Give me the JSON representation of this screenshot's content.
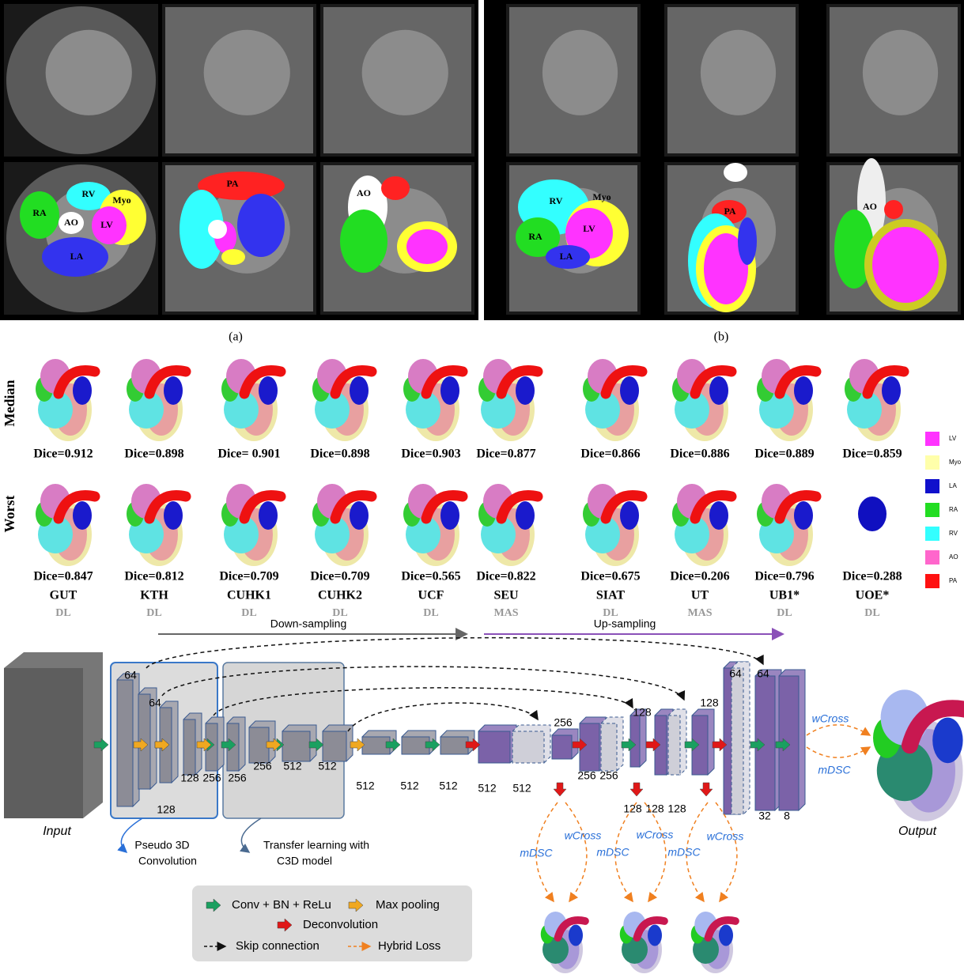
{
  "panel_a": {
    "labels": [
      "RA",
      "RV",
      "AO",
      "Myo",
      "LV",
      "LA",
      "PA",
      "AO"
    ],
    "caption": "(a)"
  },
  "panel_b": {
    "labels": [
      "RV",
      "Myo",
      "RA",
      "LV",
      "LA",
      "PA",
      "AO"
    ],
    "caption": "(b)"
  },
  "results": {
    "row_labels": [
      "Median",
      "Worst"
    ],
    "columns": [
      {
        "team": "GUT",
        "method": "DL",
        "median_dice": "Dice=0.912",
        "worst_dice": "Dice=0.847"
      },
      {
        "team": "KTH",
        "method": "DL",
        "median_dice": "Dice=0.898",
        "worst_dice": "Dice=0.812"
      },
      {
        "team": "CUHK1",
        "method": "DL",
        "median_dice": "Dice= 0.901",
        "worst_dice": "Dice=0.709"
      },
      {
        "team": "CUHK2",
        "method": "DL",
        "median_dice": "Dice=0.898",
        "worst_dice": "Dice=0.709"
      },
      {
        "team": "UCF",
        "method": "DL",
        "median_dice": "Dice=0.903",
        "worst_dice": "Dice=0.565"
      },
      {
        "team": "SEU",
        "method": "MAS",
        "median_dice": "Dice=0.877",
        "worst_dice": "Dice=0.822"
      },
      {
        "team": "SIAT",
        "method": "DL",
        "median_dice": "Dice=0.866",
        "worst_dice": "Dice=0.675"
      },
      {
        "team": "UT",
        "method": "MAS",
        "median_dice": "Dice=0.886",
        "worst_dice": "Dice=0.206"
      },
      {
        "team": "UB1*",
        "method": "DL",
        "median_dice": "Dice=0.889",
        "worst_dice": "Dice=0.796"
      },
      {
        "team": "UOE*",
        "method": "DL",
        "median_dice": "Dice=0.859",
        "worst_dice": "Dice=0.288"
      }
    ],
    "legend": [
      "LV",
      "Myo",
      "LA",
      "RA",
      "RV",
      "AO",
      "PA"
    ]
  },
  "network": {
    "down_label": "Down-sampling",
    "up_label": "Up-sampling",
    "input_label": "Input",
    "output_label": "Output",
    "channels": [
      "64",
      "64",
      "128",
      "128",
      "256",
      "256",
      "256",
      "512",
      "512",
      "512",
      "512",
      "512",
      "512",
      "512",
      "256",
      "256",
      "256",
      "128",
      "128",
      "128",
      "128",
      "128",
      "64",
      "64",
      "32",
      "8"
    ],
    "losses": [
      "wCross",
      "mDSC",
      "wCross",
      "mDSC",
      "wCross",
      "mDSC",
      "wCross",
      "mDSC"
    ],
    "pseudo_3d": [
      "Pseudo 3D",
      "Convolution"
    ],
    "transfer": [
      "Transfer learning with",
      "C3D model"
    ],
    "legend": [
      "Conv + BN + ReLu",
      "Max pooling",
      "Deconvolution",
      "Skip connection",
      "Hybrid Loss"
    ]
  }
}
